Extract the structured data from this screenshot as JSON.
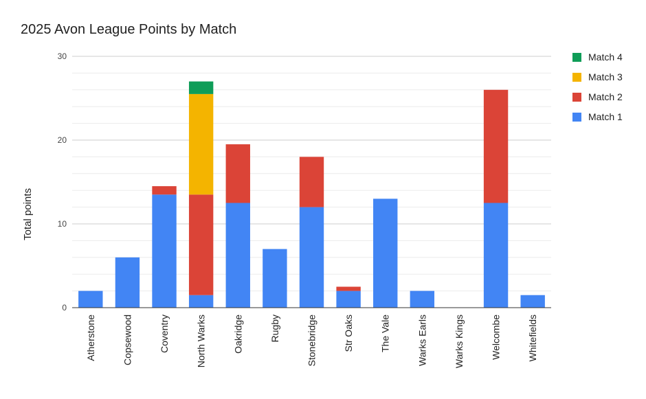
{
  "chart_data": {
    "type": "bar",
    "stacked": true,
    "title": "2025 Avon League Points by Match",
    "xlabel": "",
    "ylabel": "Total points",
    "ylim": [
      0,
      30
    ],
    "yticks": [
      0,
      10,
      20,
      30
    ],
    "minor_gridline_step": 2,
    "grid": true,
    "legend_position": "right",
    "categories": [
      "Atherstone",
      "Copsewood",
      "Coventry",
      "North Warks",
      "Oakridge",
      "Rugby",
      "Stonebridge",
      "Str Oaks",
      "The Vale",
      "Warks Earls",
      "Warks Kings",
      "Welcombe",
      "Whitefields"
    ],
    "series": [
      {
        "name": "Match 1",
        "color": "#4285F4",
        "values": [
          2,
          6,
          13.5,
          1.5,
          12.5,
          7,
          12,
          2,
          13,
          2,
          0,
          12.5,
          1.5
        ]
      },
      {
        "name": "Match 2",
        "color": "#DB4437",
        "values": [
          0,
          0,
          1,
          12,
          7,
          0,
          6,
          0.5,
          0,
          0,
          0,
          13.5,
          0
        ]
      },
      {
        "name": "Match 3",
        "color": "#F4B400",
        "values": [
          0,
          0,
          0,
          12,
          0,
          0,
          0,
          0,
          0,
          0,
          0,
          0,
          0
        ]
      },
      {
        "name": "Match 4",
        "color": "#0F9D58",
        "values": [
          0,
          0,
          0,
          1.5,
          0,
          0,
          0,
          0,
          0,
          0,
          0,
          0,
          0
        ]
      }
    ]
  }
}
